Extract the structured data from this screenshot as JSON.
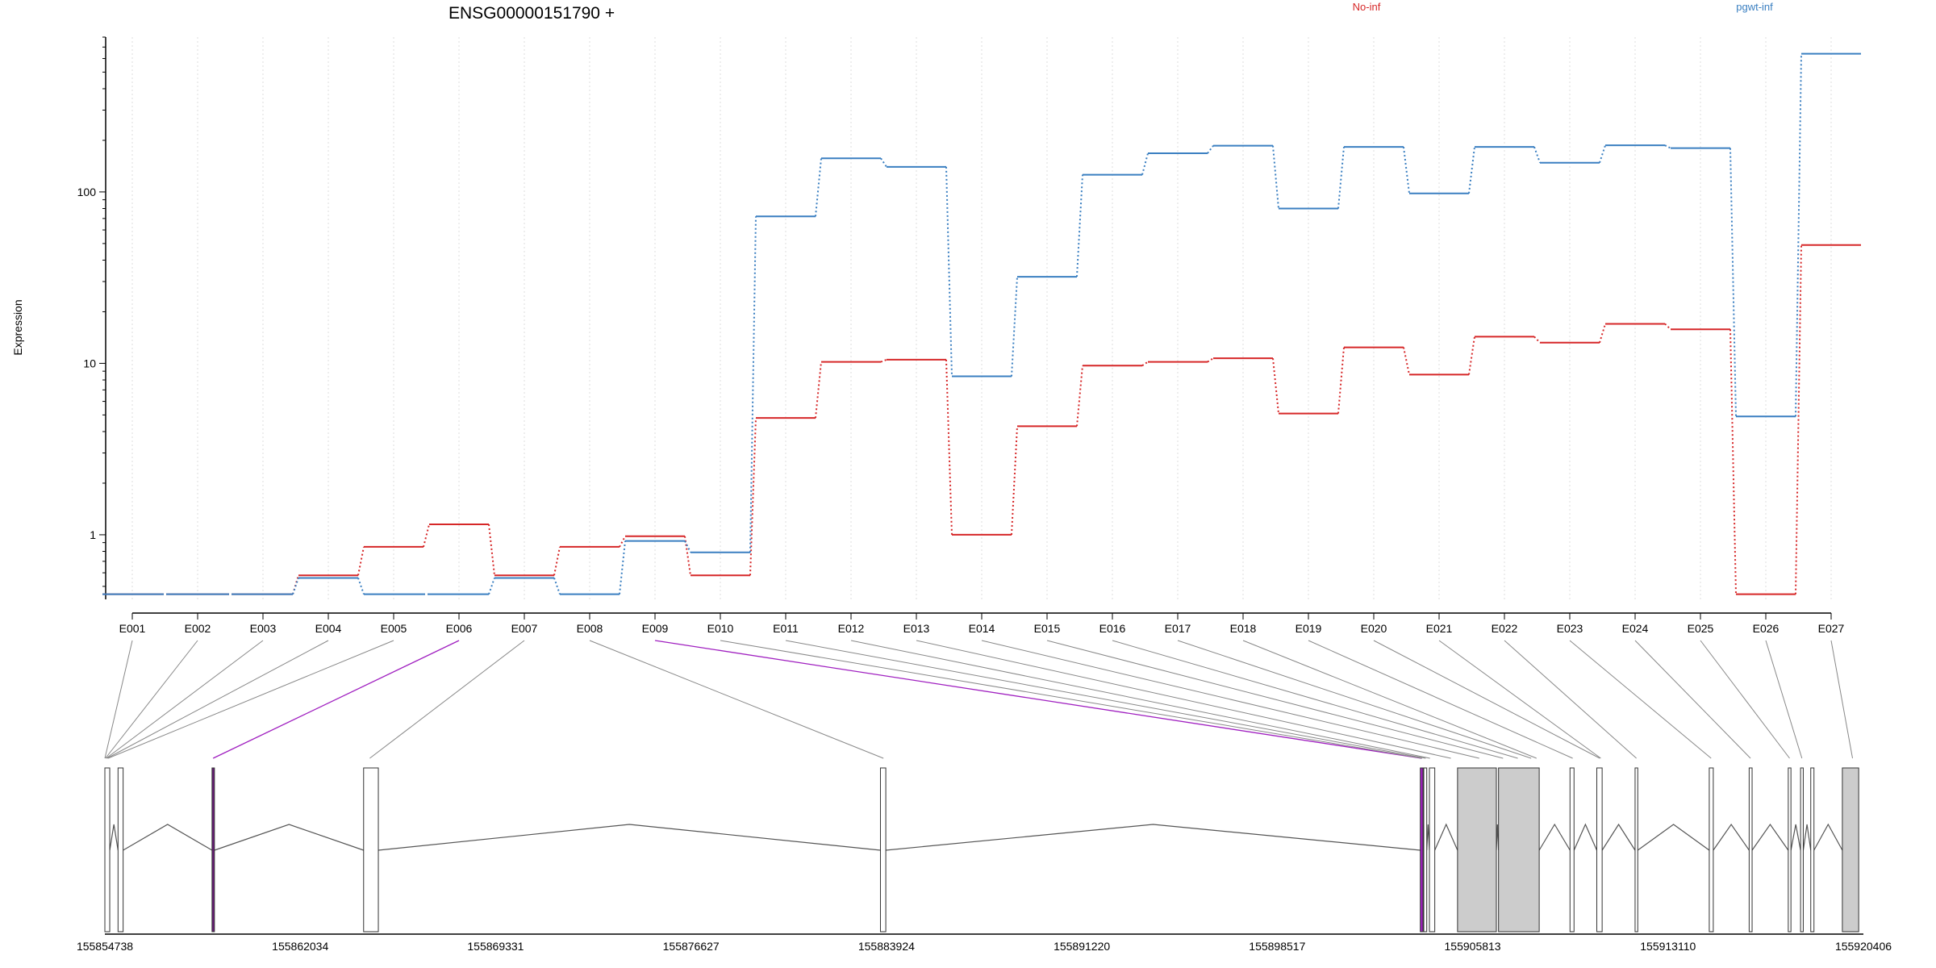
{
  "chart_data": {
    "type": "line",
    "title": "ENSG00000151790 +",
    "ylabel": "Expression",
    "yscale": "log",
    "ylim": [
      0.42,
      800
    ],
    "yticks": [
      1,
      10,
      100
    ],
    "categories": [
      "E001",
      "E002",
      "E003",
      "E004",
      "E005",
      "E006",
      "E007",
      "E008",
      "E009",
      "E010",
      "E011",
      "E012",
      "E013",
      "E014",
      "E015",
      "E016",
      "E017",
      "E018",
      "E019",
      "E020",
      "E021",
      "E022",
      "E023",
      "E024",
      "E025",
      "E026",
      "E027"
    ],
    "series": [
      {
        "name": "No-inf",
        "color": "#d62728",
        "values": [
          0.45,
          0.45,
          0.45,
          0.58,
          0.85,
          1.15,
          0.58,
          0.85,
          0.98,
          0.58,
          4.8,
          10.2,
          10.5,
          1.0,
          4.3,
          9.7,
          10.2,
          10.7,
          5.1,
          12.4,
          8.6,
          14.3,
          13.2,
          17.0,
          15.8,
          0.45,
          49.0
        ]
      },
      {
        "name": "pgwt-inf",
        "color": "#3a7fc1",
        "values": [
          0.45,
          0.45,
          0.45,
          0.56,
          0.45,
          0.45,
          0.56,
          0.45,
          0.92,
          0.79,
          72,
          157,
          140,
          8.4,
          32,
          126,
          168,
          186,
          80,
          183,
          98,
          183,
          148,
          187,
          180,
          4.9,
          640
        ]
      }
    ],
    "highlighted_exons": [
      "E006",
      "E009"
    ],
    "grid": "vertical-dotted",
    "legend_position": "top"
  },
  "gene_model": {
    "coordinate_ticks": [
      "155854738",
      "155862034",
      "155869331",
      "155876627",
      "155883924",
      "155891220",
      "155898517",
      "155905813",
      "155913110",
      "155920406"
    ],
    "coord_start": 155854738,
    "coord_end": 155920406,
    "exons": [
      {
        "start": 155854738,
        "end": 155854920,
        "fill": "#ffffff"
      },
      {
        "start": 155855230,
        "end": 155855420,
        "fill": "#ffffff"
      },
      {
        "start": 155858740,
        "end": 155858830,
        "fill": "#6a1b7a"
      },
      {
        "start": 155864400,
        "end": 155864950,
        "fill": "#ffffff"
      },
      {
        "start": 155883700,
        "end": 155883900,
        "fill": "#ffffff"
      },
      {
        "start": 155903860,
        "end": 155903960,
        "fill": "#a020c0"
      },
      {
        "start": 155903990,
        "end": 155904100,
        "fill": "#ffffff"
      },
      {
        "start": 155904200,
        "end": 155904400,
        "fill": "#ffffff"
      },
      {
        "start": 155905250,
        "end": 155906700,
        "fill": "#cccccc"
      },
      {
        "start": 155906780,
        "end": 155908300,
        "fill": "#cccccc"
      },
      {
        "start": 155909450,
        "end": 155909600,
        "fill": "#ffffff"
      },
      {
        "start": 155910450,
        "end": 155910650,
        "fill": "#ffffff"
      },
      {
        "start": 155911880,
        "end": 155911980,
        "fill": "#ffffff"
      },
      {
        "start": 155914650,
        "end": 155914800,
        "fill": "#ffffff"
      },
      {
        "start": 155916140,
        "end": 155916250,
        "fill": "#ffffff"
      },
      {
        "start": 155917600,
        "end": 155917700,
        "fill": "#ffffff"
      },
      {
        "start": 155918060,
        "end": 155918160,
        "fill": "#ffffff"
      },
      {
        "start": 155918440,
        "end": 155918560,
        "fill": "#ffffff"
      },
      {
        "start": 155919620,
        "end": 155920230,
        "fill": "#cccccc"
      }
    ],
    "exon_links": [
      155854738,
      155854760,
      155854790,
      155854820,
      155854860,
      155858780,
      155864630,
      155883810,
      155903900,
      155903930,
      155904060,
      155904220,
      155905000,
      155906060,
      155906950,
      155907500,
      155908000,
      155908200,
      155909550,
      155910560,
      155910600,
      155911930,
      155914720,
      155916190,
      155917650,
      155918110,
      155920000
    ],
    "highlighted_links": [
      5,
      8
    ]
  }
}
